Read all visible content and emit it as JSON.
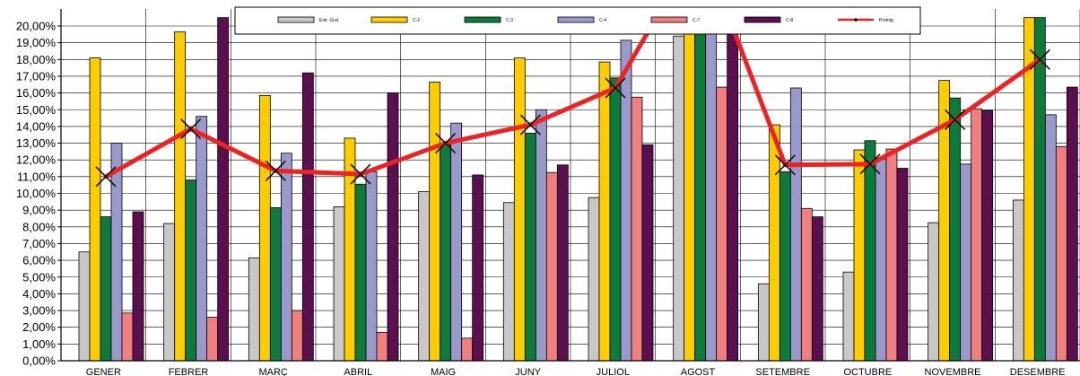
{
  "chart_data": {
    "type": "bar",
    "categories": [
      "GENER",
      "FEBRER",
      "MARÇ",
      "ABRIL",
      "MAIG",
      "JUNY",
      "JULIOL",
      "AGOST",
      "SETEMBRE",
      "OCTUBRE",
      "NOVEMBRE",
      "DESEMBRE"
    ],
    "y_ticks": [
      "0,00%",
      "1,00%",
      "2,00%",
      "3,00%",
      "4,00%",
      "5,00%",
      "6,00%",
      "7,00%",
      "8,00%",
      "9,00%",
      "10,00%",
      "11,00%",
      "12,00%",
      "13,00%",
      "14,00%",
      "15,00%",
      "16,00%",
      "17,00%",
      "18,00%",
      "19,00%",
      "20,00%"
    ],
    "ylim": [
      0,
      20
    ],
    "grid": true,
    "legend_position": "top",
    "series": [
      {
        "name": "Extr. Gral.",
        "color": "#c8c8c8",
        "values": [
          6.5,
          8.2,
          6.15,
          9.2,
          10.1,
          9.45,
          9.75,
          19.4,
          4.6,
          5.3,
          8.25,
          9.6
        ]
      },
      {
        "name": "C-2",
        "color": "#ffcc00",
        "values": [
          18.1,
          19.65,
          15.85,
          13.3,
          16.65,
          18.1,
          17.85,
          20.5,
          14.1,
          12.6,
          16.75,
          20.5
        ]
      },
      {
        "name": "C-3",
        "color": "#0e7a3c",
        "values": [
          8.6,
          10.8,
          9.15,
          10.55,
          12.9,
          13.6,
          16.9,
          20.5,
          11.3,
          13.15,
          15.7,
          20.5
        ]
      },
      {
        "name": "C-4",
        "color": "#9999cc",
        "values": [
          13.0,
          14.6,
          12.4,
          11.3,
          14.2,
          15.0,
          19.15,
          20.5,
          16.3,
          12.05,
          11.75,
          14.7
        ]
      },
      {
        "name": "C-7",
        "color": "#f08080",
        "values": [
          2.85,
          2.6,
          3.0,
          1.7,
          1.35,
          11.25,
          15.75,
          16.35,
          9.1,
          12.65,
          15.05,
          12.8
        ]
      },
      {
        "name": "C-8",
        "color": "#5b0f4f",
        "values": [
          8.9,
          20.5,
          17.2,
          16.0,
          11.1,
          11.7,
          12.9,
          20.5,
          8.6,
          11.5,
          14.95,
          16.35
        ]
      }
    ],
    "line_series": {
      "name": "Promig",
      "color": "#ee2222",
      "marker": "x",
      "values": [
        11.0,
        13.85,
        11.35,
        11.15,
        13.0,
        14.1,
        16.3,
        25.0,
        11.7,
        11.75,
        14.4,
        18.0
      ]
    }
  }
}
